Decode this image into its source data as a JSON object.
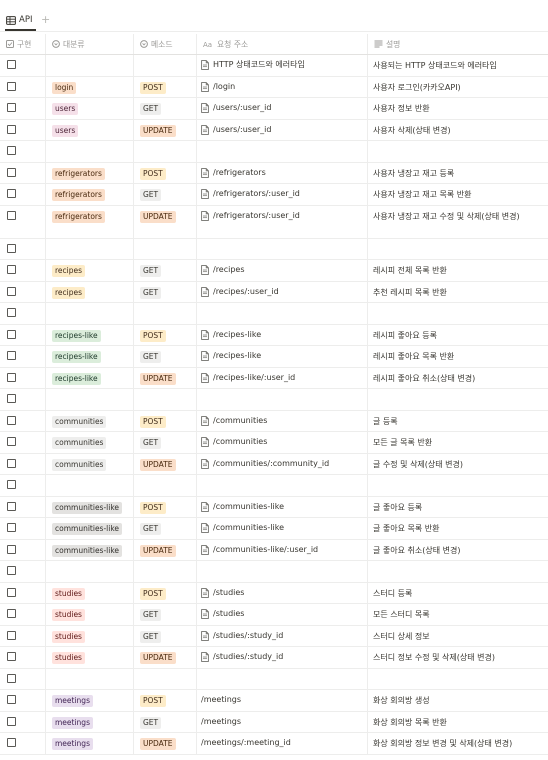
{
  "view": {
    "tab_label": "API",
    "add_tab": "+"
  },
  "columns": {
    "done": "구현",
    "category": "대분류",
    "method": "메소드",
    "url": "요청 주소",
    "desc": "설명"
  },
  "rows": [
    {
      "category": "",
      "method": "",
      "url": "HTTP 상태코드와 에러타입",
      "desc": "사용되는 HTTP 상태코드와 에러타입"
    },
    {
      "category": "login",
      "method": "POST",
      "url": "/login",
      "desc": "사용자 로그인(카카오API)"
    },
    {
      "category": "users",
      "method": "GET",
      "url": "/users/:user_id",
      "desc": "사용자 정보 반환"
    },
    {
      "category": "users",
      "method": "UPDATE",
      "url": "/users/:user_id",
      "desc": "사용자 삭제(상태 변경)"
    },
    {
      "category": "",
      "method": "",
      "url": "",
      "desc": ""
    },
    {
      "category": "refrigerators",
      "method": "POST",
      "url": "/refrigerators",
      "desc": "사용자 냉장고 재고 등록"
    },
    {
      "category": "refrigerators",
      "method": "GET",
      "url": "/refrigerators/:user_id",
      "desc": "사용자 냉장고 재고 목록 반환"
    },
    {
      "category": "refrigerators",
      "method": "UPDATE",
      "url": "/refrigerators/:user_id",
      "desc": "사용자 냉장고 재고 수정 및 삭제(상태 변경)"
    },
    {
      "category": "",
      "method": "",
      "url": "",
      "desc": ""
    },
    {
      "category": "recipes",
      "method": "GET",
      "url": "/recipes",
      "desc": "레시피 전체 목록 반환"
    },
    {
      "category": "recipes",
      "method": "GET",
      "url": "/recipes/:user_id",
      "desc": "추천 레시피 목록 반환"
    },
    {
      "category": "",
      "method": "",
      "url": "",
      "desc": ""
    },
    {
      "category": "recipes-like",
      "method": "POST",
      "url": "/recipes-like",
      "desc": "레시피 좋아요 등록"
    },
    {
      "category": "recipes-like",
      "method": "GET",
      "url": "/recipes-like",
      "desc": "레시피 좋아요 목록 반환"
    },
    {
      "category": "recipes-like",
      "method": "UPDATE",
      "url": "/recipes-like/:user_id",
      "desc": "레시피 좋아요 취소(상태 변경)"
    },
    {
      "category": "",
      "method": "",
      "url": "",
      "desc": ""
    },
    {
      "category": "communities",
      "method": "POST",
      "url": "/communities",
      "desc": "글 등록"
    },
    {
      "category": "communities",
      "method": "GET",
      "url": "/communities",
      "desc": "모든 글 목록 반환"
    },
    {
      "category": "communities",
      "method": "UPDATE",
      "url": "/communities/:community_id",
      "desc": "글 수정 및 삭제(상태 변경)"
    },
    {
      "category": "",
      "method": "",
      "url": "",
      "desc": ""
    },
    {
      "category": "communities-like",
      "method": "POST",
      "url": "/communities-like",
      "desc": "글 좋아요 등록"
    },
    {
      "category": "communities-like",
      "method": "GET",
      "url": "/communities-like",
      "desc": "글 좋아요 목록 반환"
    },
    {
      "category": "communities-like",
      "method": "UPDATE",
      "url": "/communities-like/:user_id",
      "desc": "글 좋아요 취소(상태 변경)"
    },
    {
      "category": "",
      "method": "",
      "url": "",
      "desc": ""
    },
    {
      "category": "studies",
      "method": "POST",
      "url": "/studies",
      "desc": "스터디 등록"
    },
    {
      "category": "studies",
      "method": "GET",
      "url": "/studies",
      "desc": "모든 스터디 목록"
    },
    {
      "category": "studies",
      "method": "GET",
      "url": "/studies/:study_id",
      "desc": "스터디 상세 정보"
    },
    {
      "category": "studies",
      "method": "UPDATE",
      "url": "/studies/:study_id",
      "desc": "스터디 정보 수정 및 삭제(상태 변경)"
    },
    {
      "category": "",
      "method": "",
      "url": "",
      "desc": ""
    },
    {
      "category": "meetings",
      "method": "POST",
      "url": "/meetings",
      "desc": "화상 회의방 생성"
    },
    {
      "category": "meetings",
      "method": "GET",
      "url": "/meetings",
      "desc": "화상 회의방 목록 반환"
    },
    {
      "category": "meetings",
      "method": "UPDATE",
      "url": "/meetings/:meeting_id",
      "desc": "화상 회의방 정보 변경 및 삭제(상태 변경)"
    }
  ],
  "tag_colors": {
    "login": "#fadec9",
    "users": "#f5e0e9",
    "refrigerators": "#fadec9",
    "recipes": "#fdecc8",
    "recipes-like": "#dbeddb",
    "communities": "#eeeeed",
    "communities-like": "#e3e2e0",
    "studies": "#ffe2dd",
    "meetings": "#e8deee",
    "POST": "#fdecc8",
    "GET": "#eeeeed",
    "UPDATE": "#fadec9"
  },
  "icons": {
    "view": "table-icon",
    "done_col": "checkbox-icon",
    "category_col": "select-icon",
    "method_col": "select-icon",
    "url_col": "text-icon",
    "desc_col": "lines-icon",
    "url_row": "page-icon"
  }
}
